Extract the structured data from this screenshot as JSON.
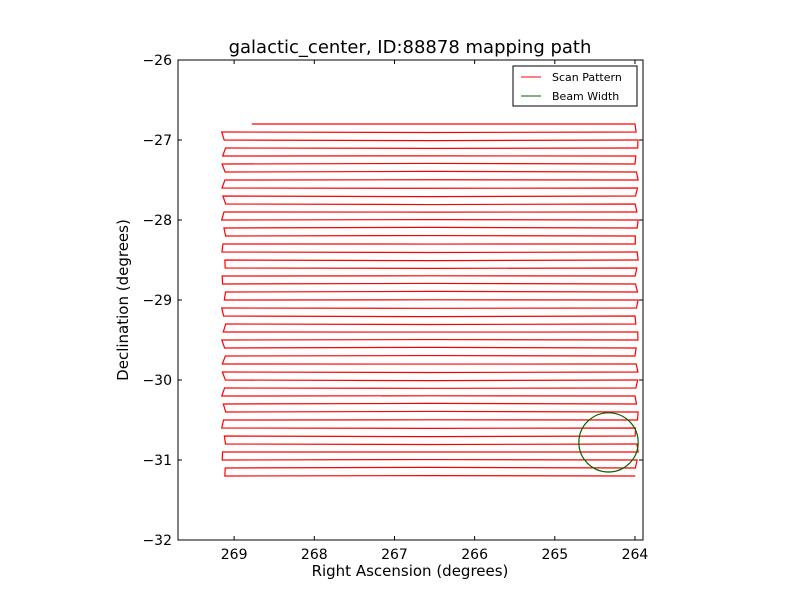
{
  "chart_data": {
    "type": "line",
    "title": "galactic_center, ID:88878 mapping path",
    "xlabel": "Right Ascension (degrees)",
    "ylabel": "Declination (degrees)",
    "xlim": [
      269.7,
      263.9
    ],
    "ylim": [
      -32,
      -26
    ],
    "x_ticks": [
      269,
      268,
      267,
      266,
      265,
      264
    ],
    "y_ticks": [
      -26,
      -27,
      -28,
      -29,
      -30,
      -31,
      -32
    ],
    "x_tick_labels": [
      "269",
      "268",
      "267",
      "266",
      "265",
      "264"
    ],
    "y_tick_labels": [
      "−26",
      "−27",
      "−28",
      "−29",
      "−30",
      "−31",
      "−32"
    ],
    "grid": false,
    "legend_position": "top-right",
    "scan": {
      "name": "Scan Pattern",
      "color": "#ff0000",
      "dec_start": -26.8,
      "dec_end": -31.2,
      "ra_left": 269.13,
      "ra_right": 263.98,
      "ra_start": 268.78
    },
    "beam": {
      "name": "Beam Width",
      "color": "#006400",
      "center_ra": 264.33,
      "center_dec": -30.78,
      "radius_deg": 0.37
    }
  }
}
